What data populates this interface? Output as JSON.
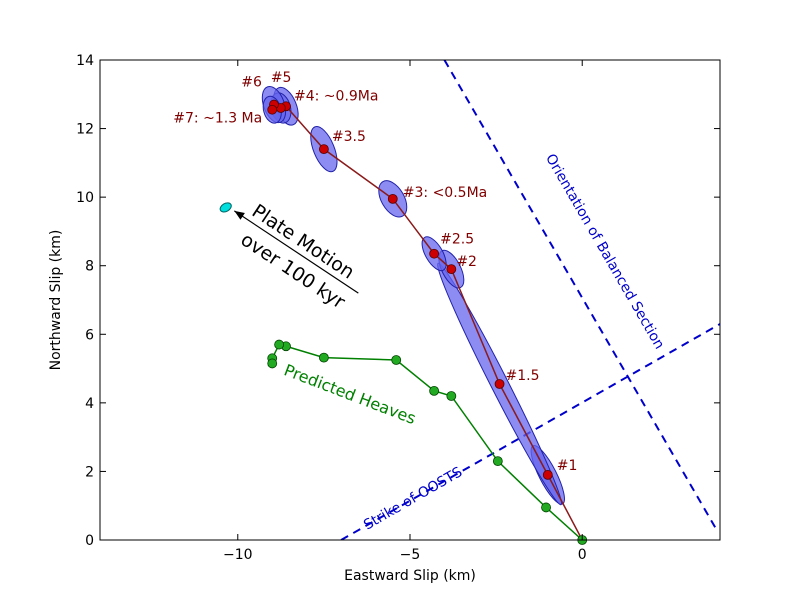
{
  "chart_data": {
    "type": "scatter",
    "xlabel": "Eastward Slip (km)",
    "ylabel": "Northward Slip (km)",
    "xlim": [
      -14,
      4
    ],
    "ylim": [
      0,
      14
    ],
    "xticks": [
      "−10",
      "−5",
      "0"
    ],
    "xtick_values": [
      -10,
      -5,
      0
    ],
    "yticks": [
      "0",
      "2",
      "4",
      "6",
      "8",
      "10",
      "12",
      "14"
    ],
    "ytick_values": [
      0,
      2,
      4,
      6,
      8,
      10,
      12,
      14
    ],
    "grid": false,
    "colors": {
      "observed": "#8b1a1a",
      "observed_marker": "#cc0000",
      "ellipse": "#6666ee",
      "predicted": "#008000",
      "dashed": "#0000cc",
      "plate_marker": "#00dddd"
    },
    "series": [
      {
        "points": [
          {
            "x": 0,
            "y": 0,
            "label": ""
          },
          {
            "x": -1.0,
            "y": 1.9,
            "label": "#1"
          },
          {
            "x": -2.4,
            "y": 4.55,
            "label": "#1.5"
          },
          {
            "x": -3.8,
            "y": 7.9,
            "label": "#2"
          },
          {
            "x": -4.3,
            "y": 8.35,
            "label": "#2.5"
          },
          {
            "x": -5.5,
            "y": 9.95,
            "label": "#3: <0.5Ma"
          },
          {
            "x": -7.5,
            "y": 11.4,
            "label": "#3.5"
          },
          {
            "x": -8.6,
            "y": 12.65,
            "label": "#4: ~0.9Ma"
          },
          {
            "x": -8.75,
            "y": 12.6,
            "label": "#5"
          },
          {
            "x": -8.95,
            "y": 12.7,
            "label": "#6"
          },
          {
            "x": -9.0,
            "y": 12.55,
            "label": "#7: ~1.3 Ma"
          }
        ],
        "ellipses": [
          {
            "x": -1.0,
            "y": 1.9,
            "rx": 0.25,
            "ry": 0.95,
            "angle": -27
          },
          {
            "x": -2.4,
            "y": 4.55,
            "rx": 0.25,
            "ry": 3.95,
            "angle": -27
          },
          {
            "x": -3.8,
            "y": 7.9,
            "rx": 0.27,
            "ry": 0.6,
            "angle": -27
          },
          {
            "x": -4.3,
            "y": 8.35,
            "rx": 0.25,
            "ry": 0.55,
            "angle": -30
          },
          {
            "x": -5.5,
            "y": 9.95,
            "rx": 0.33,
            "ry": 0.58,
            "angle": -30
          },
          {
            "x": -7.5,
            "y": 11.4,
            "rx": 0.3,
            "ry": 0.7,
            "angle": -22
          },
          {
            "x": -8.6,
            "y": 12.65,
            "rx": 0.3,
            "ry": 0.58,
            "angle": -22
          },
          {
            "x": -8.75,
            "y": 12.6,
            "rx": 0.28,
            "ry": 0.45,
            "angle": -15
          },
          {
            "x": -8.95,
            "y": 12.7,
            "rx": 0.3,
            "ry": 0.55,
            "angle": -20
          },
          {
            "x": -9.0,
            "y": 12.55,
            "rx": 0.25,
            "ry": 0.4,
            "angle": -15
          }
        ]
      },
      {
        "name": "Predicted Heaves",
        "points": [
          {
            "x": 0,
            "y": 0
          },
          {
            "x": -1.05,
            "y": 0.95
          },
          {
            "x": -2.45,
            "y": 2.3
          },
          {
            "x": -3.8,
            "y": 4.2
          },
          {
            "x": -4.3,
            "y": 4.35
          },
          {
            "x": -5.4,
            "y": 5.25
          },
          {
            "x": -7.5,
            "y": 5.32
          },
          {
            "x": -8.6,
            "y": 5.65
          },
          {
            "x": -8.8,
            "y": 5.7
          },
          {
            "x": -9.0,
            "y": 5.3
          },
          {
            "x": -9.0,
            "y": 5.15
          }
        ]
      }
    ],
    "plate_motion": {
      "label_line1": "Plate Motion",
      "label_line2": "over 100 kyr",
      "point": {
        "x": -10.35,
        "y": 9.7
      },
      "arrow_from": {
        "x": -6.5,
        "y": 7.2
      },
      "arrow_to": {
        "x": -10.1,
        "y": 9.6
      }
    },
    "dashed_lines": [
      {
        "label": "Orientation of Balanced Section",
        "from": {
          "x": -4.0,
          "y": 14.0
        },
        "to": {
          "x": 3.9,
          "y": 0.3
        }
      },
      {
        "label": "Strike of OOSTS",
        "from": {
          "x": -7.0,
          "y": 0.0
        },
        "to": {
          "x": 4.0,
          "y": 6.3
        }
      }
    ]
  }
}
